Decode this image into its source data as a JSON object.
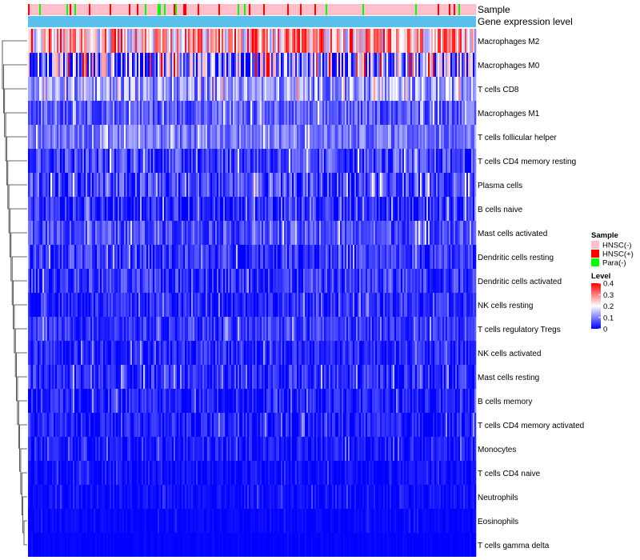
{
  "chart_data": {
    "type": "heatmap",
    "annotations": [
      {
        "name": "Sample"
      },
      {
        "name": "Gene expression level"
      }
    ],
    "rows": [
      {
        "label": "Macrophages M2",
        "mean": 0.24,
        "spread": 0.14
      },
      {
        "label": "Macrophages M0",
        "mean": 0.11,
        "spread": 0.17
      },
      {
        "label": "T cells CD8",
        "mean": 0.12,
        "spread": 0.08
      },
      {
        "label": "Macrophages M1",
        "mean": 0.07,
        "spread": 0.05
      },
      {
        "label": "T cells follicular helper",
        "mean": 0.09,
        "spread": 0.05
      },
      {
        "label": "T cells CD4 memory resting",
        "mean": 0.05,
        "spread": 0.06
      },
      {
        "label": "Plasma cells",
        "mean": 0.05,
        "spread": 0.07
      },
      {
        "label": "B cells naive",
        "mean": 0.03,
        "spread": 0.05
      },
      {
        "label": "Mast cells activated",
        "mean": 0.06,
        "spread": 0.05
      },
      {
        "label": "Dendritic cells resting",
        "mean": 0.04,
        "spread": 0.05
      },
      {
        "label": "Dendritic cells activated",
        "mean": 0.04,
        "spread": 0.05
      },
      {
        "label": "NK cells resting",
        "mean": 0.03,
        "spread": 0.04
      },
      {
        "label": "T cells regulatory  Tregs",
        "mean": 0.04,
        "spread": 0.04
      },
      {
        "label": "NK cells activated",
        "mean": 0.03,
        "spread": 0.04
      },
      {
        "label": "Mast cells resting",
        "mean": 0.03,
        "spread": 0.05
      },
      {
        "label": "B cells memory",
        "mean": 0.02,
        "spread": 0.04
      },
      {
        "label": "T cells CD4 memory activated",
        "mean": 0.02,
        "spread": 0.04
      },
      {
        "label": "Monocytes",
        "mean": 0.02,
        "spread": 0.03
      },
      {
        "label": "T cells CD4 naive",
        "mean": 0.01,
        "spread": 0.02
      },
      {
        "label": "Neutrophils",
        "mean": 0.01,
        "spread": 0.02
      },
      {
        "label": "Eosinophils",
        "mean": 0.005,
        "spread": 0.01
      },
      {
        "label": "T cells gamma delta",
        "mean": 0.002,
        "spread": 0.005
      }
    ],
    "n_samples": 280,
    "sample_groups": [
      {
        "name": "HNSC(-)",
        "color": "#FFC0CB",
        "fraction": 0.88
      },
      {
        "name": "HNSC(+)",
        "color": "#FF0000",
        "fraction": 0.07
      },
      {
        "name": "Para(-)",
        "color": "#00FF00",
        "fraction": 0.05
      }
    ],
    "gene_expression_color": "#5BC0EB",
    "color_scale": {
      "title": "Level",
      "breaks": [
        0,
        0.1,
        0.2,
        0.3,
        0.4
      ],
      "labels": [
        "0",
        "0.1",
        "0.2",
        "0.3",
        "0.4"
      ],
      "colors": [
        "#0000FF",
        "#FFFFFF",
        "#FF0000"
      ],
      "min": 0,
      "max": 0.4
    },
    "legend": {
      "sample_title": "Sample",
      "placement": "right"
    }
  }
}
